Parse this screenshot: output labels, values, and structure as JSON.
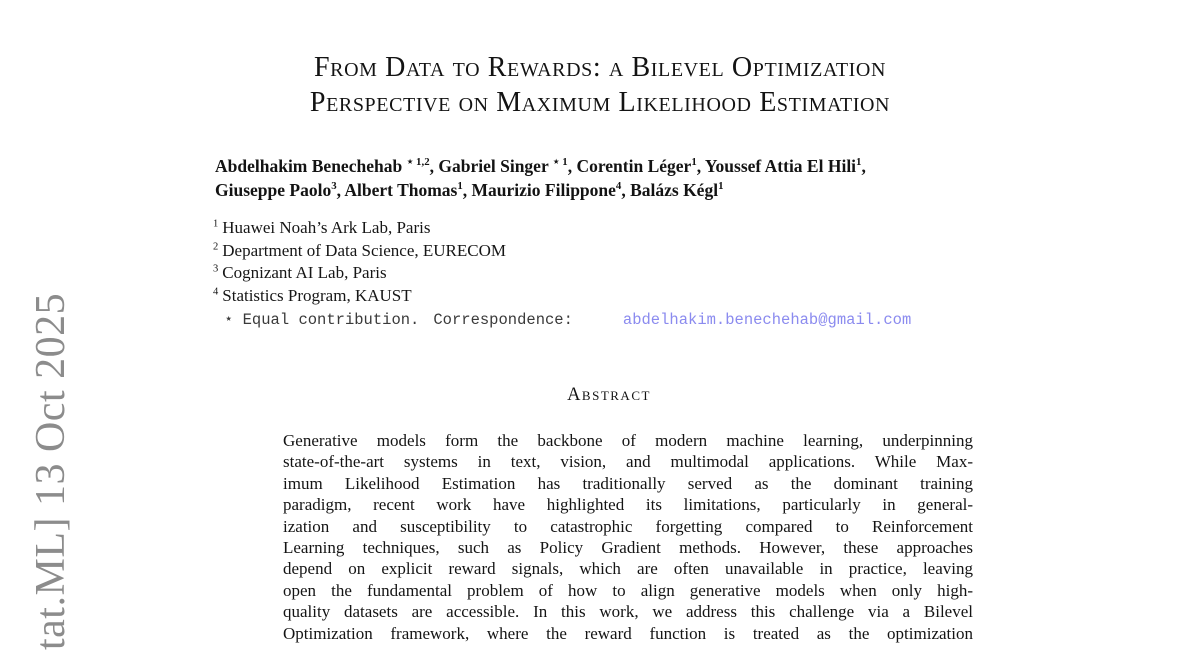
{
  "page": {
    "background": "#ffffff",
    "text_color": "#161616"
  },
  "watermark": {
    "text": "tat.ML] 13 Oct 2025",
    "color": "#8c8c8c"
  },
  "title": {
    "line1": "From Data to Rewards: a Bilevel Optimization",
    "line2": "Perspective on Maximum Likelihood Estimation"
  },
  "authors": {
    "line1": [
      {
        "t": "Abdelhakim Benechehab "
      },
      {
        "t": "⋆ 1,2",
        "sup": true
      },
      {
        "t": ", Gabriel Singer "
      },
      {
        "t": "⋆ 1",
        "sup": true
      },
      {
        "t": ", Corentin Léger"
      },
      {
        "t": "1",
        "sup": true
      },
      {
        "t": ", Youssef Attia El Hili"
      },
      {
        "t": "1",
        "sup": true
      },
      {
        "t": ","
      }
    ],
    "line2": [
      {
        "t": "Giuseppe Paolo"
      },
      {
        "t": "3",
        "sup": true
      },
      {
        "t": ", Albert Thomas"
      },
      {
        "t": "1",
        "sup": true
      },
      {
        "t": ", Maurizio Filippone"
      },
      {
        "t": "4",
        "sup": true
      },
      {
        "t": ", Balázs Kégl"
      },
      {
        "t": "1",
        "sup": true
      }
    ]
  },
  "affiliations": [
    {
      "sup": "1",
      "text": "Huawei Noah’s Ark Lab, Paris"
    },
    {
      "sup": "2",
      "text": "Department of Data Science, EURECOM"
    },
    {
      "sup": "3",
      "text": "Cognizant AI Lab, Paris"
    },
    {
      "sup": "4",
      "text": "Statistics Program, KAUST"
    }
  ],
  "footnote": {
    "equal": "⋆ Equal contribution.",
    "correspondence_label": "Correspondence:",
    "email": "abdelhakim.benechehab@gmail.com",
    "email_color": "#8b8bef",
    "label_color": "#3a3a3a"
  },
  "abstract": {
    "heading": "Abstract",
    "lines": [
      "Generative models form the backbone of modern machine learning, underpinning",
      "state-of-the-art systems in text, vision, and multimodal applications. While Max-",
      "imum Likelihood Estimation has traditionally served as the dominant training",
      "paradigm, recent work have highlighted its limitations, particularly in general-",
      "ization and susceptibility to catastrophic forgetting compared to Reinforcement",
      "Learning techniques, such as Policy Gradient methods. However, these approaches",
      "depend on explicit reward signals, which are often unavailable in practice, leaving",
      "open the fundamental problem of how to align generative models when only high-",
      "quality datasets are accessible. In this work, we address this challenge via a Bilevel",
      "Optimization framework, where the reward function is treated as the optimization"
    ]
  }
}
